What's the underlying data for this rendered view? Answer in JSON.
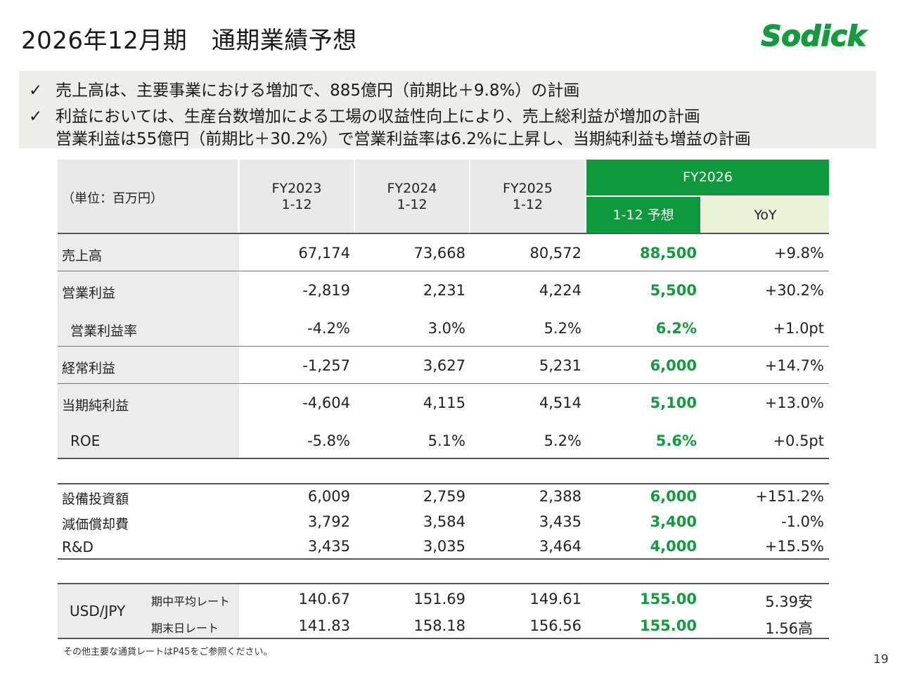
{
  "title": "2026年12月期　通期業績予想",
  "logo_text": "Sodick",
  "bullets": [
    {
      "mark": "✓",
      "lines": [
        "売上高は、主要事業における増加で、885億円（前期比＋9.8%）の計画"
      ]
    },
    {
      "mark": "✓",
      "lines": [
        "利益においては、生産台数増加による工場の収益性向上により、売上総利益が増加の計画",
        "営業利益は55億円（前期比＋30.2%）で営業利益率は6.2%に上昇し、当期純利益も増益の計画"
      ]
    }
  ],
  "table": {
    "unit_label": "（単位：百万円）",
    "columns": [
      {
        "year": "FY2023",
        "period": "1-12"
      },
      {
        "year": "FY2024",
        "period": "1-12"
      },
      {
        "year": "FY2025",
        "period": "1-12"
      }
    ],
    "forecast": {
      "year": "FY2026",
      "period": "1-12 予想",
      "yoy": "YoY"
    },
    "rows": [
      {
        "label": "売上高",
        "values": [
          "67,174",
          "73,668",
          "80,572"
        ],
        "forecast": "88,500",
        "yoy": "+9.8%"
      },
      {
        "label": "営業利益",
        "values": [
          "-2,819",
          "2,231",
          "4,224"
        ],
        "forecast": "5,500",
        "yoy": "+30.2%"
      },
      {
        "label": "営業利益率",
        "values": [
          "-4.2%",
          "3.0%",
          "5.2%"
        ],
        "forecast": "6.2%",
        "yoy": "+1.0pt"
      },
      {
        "label": "経常利益",
        "values": [
          "-1,257",
          "3,627",
          "5,231"
        ],
        "forecast": "6,000",
        "yoy": "+14.7%"
      },
      {
        "label": "当期純利益",
        "values": [
          "-4,604",
          "4,115",
          "4,514"
        ],
        "forecast": "5,100",
        "yoy": "+13.0%"
      },
      {
        "label": "ROE",
        "values": [
          "-5.8%",
          "5.1%",
          "5.2%"
        ],
        "forecast": "5.6%",
        "yoy": "+0.5pt"
      }
    ],
    "capex_rows": [
      {
        "label": "設備投資額",
        "values": [
          "6,009",
          "2,759",
          "2,388"
        ],
        "forecast": "6,000",
        "yoy": "+151.2%"
      },
      {
        "label": "減価償却費",
        "values": [
          "3,792",
          "3,584",
          "3,435"
        ],
        "forecast": "3,400",
        "yoy": "-1.0%"
      },
      {
        "label": "R&D",
        "values": [
          "3,435",
          "3,035",
          "3,464"
        ],
        "forecast": "4,000",
        "yoy": "+15.5%"
      }
    ],
    "fx": {
      "label": "USD/JPY",
      "rows": [
        {
          "label": "期中平均レート",
          "values": [
            "140.67",
            "151.69",
            "149.61"
          ],
          "forecast": "155.00",
          "yoy": "5.39安"
        },
        {
          "label": "期末日レート",
          "values": [
            "141.83",
            "158.18",
            "156.56"
          ],
          "forecast": "155.00",
          "yoy": "1.56高"
        }
      ]
    }
  },
  "footnote": "その他主要な通貨レートはP45をご参照ください。",
  "page_number": "19",
  "colors": {
    "brand_green": "#0e9a3c",
    "forecast_green": "#159a3e",
    "yoy_header_bg": "#e9f3d8",
    "bullet_bg": "#eeeee8"
  }
}
